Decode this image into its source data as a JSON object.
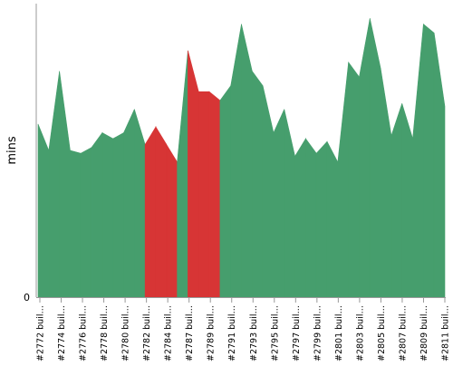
{
  "chart_data": {
    "type": "area",
    "ylabel": "mins",
    "y_tick_labels": [
      "0"
    ],
    "ylim": [
      0,
      100
    ],
    "colors": {
      "pass": "#469e6d",
      "fail": "#d73535",
      "axis": "#999999"
    },
    "x_tick_labels": [
      "#2772 buil…",
      "#2774 buil…",
      "#2776 buil…",
      "#2778 buil…",
      "#2780 buil…",
      "#2782 buil…",
      "#2784 buil…",
      "#2787 buil…",
      "#2789 buil…",
      "#2791 buil…",
      "#2793 buil…",
      "#2795 buil…",
      "#2797 buil…",
      "#2799 buil…",
      "#2801 buil…",
      "#2803 buil…",
      "#2805 buil…",
      "#2807 buil…",
      "#2809 buil…",
      "#2811 buil…"
    ],
    "builds": [
      {
        "value": 59,
        "status": "pass"
      },
      {
        "value": 50,
        "status": "pass"
      },
      {
        "value": 77,
        "status": "pass"
      },
      {
        "value": 50,
        "status": "pass"
      },
      {
        "value": 49,
        "status": "pass"
      },
      {
        "value": 51,
        "status": "pass"
      },
      {
        "value": 56,
        "status": "pass"
      },
      {
        "value": 54,
        "status": "pass"
      },
      {
        "value": 56,
        "status": "pass"
      },
      {
        "value": 64,
        "status": "pass"
      },
      {
        "value": 52,
        "status": "pass"
      },
      {
        "value": 58,
        "status": "fail"
      },
      {
        "value": 52,
        "status": "fail"
      },
      {
        "value": 46,
        "status": "fail"
      },
      {
        "value": 84,
        "status": "pass"
      },
      {
        "value": 70,
        "status": "fail"
      },
      {
        "value": 70,
        "status": "fail"
      },
      {
        "value": 67,
        "status": "fail"
      },
      {
        "value": 72,
        "status": "pass"
      },
      {
        "value": 93,
        "status": "pass"
      },
      {
        "value": 77,
        "status": "pass"
      },
      {
        "value": 72,
        "status": "pass"
      },
      {
        "value": 56,
        "status": "pass"
      },
      {
        "value": 64,
        "status": "pass"
      },
      {
        "value": 48,
        "status": "pass"
      },
      {
        "value": 54,
        "status": "pass"
      },
      {
        "value": 49,
        "status": "pass"
      },
      {
        "value": 53,
        "status": "pass"
      },
      {
        "value": 46,
        "status": "pass"
      },
      {
        "value": 80,
        "status": "pass"
      },
      {
        "value": 75,
        "status": "pass"
      },
      {
        "value": 95,
        "status": "pass"
      },
      {
        "value": 78,
        "status": "pass"
      },
      {
        "value": 55,
        "status": "pass"
      },
      {
        "value": 66,
        "status": "pass"
      },
      {
        "value": 54,
        "status": "pass"
      },
      {
        "value": 93,
        "status": "pass"
      },
      {
        "value": 90,
        "status": "pass"
      },
      {
        "value": 65,
        "status": "pass"
      }
    ]
  }
}
